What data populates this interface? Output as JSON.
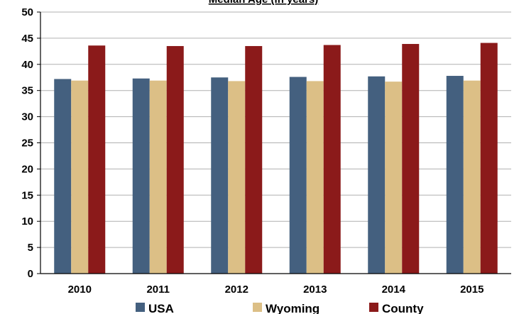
{
  "chart_data": {
    "type": "bar",
    "title": "Median Age (in years)",
    "categories": [
      "2010",
      "2011",
      "2012",
      "2013",
      "2014",
      "2015"
    ],
    "series": [
      {
        "name": "USA",
        "color": "#44607f",
        "values": [
          37.2,
          37.3,
          37.5,
          37.6,
          37.7,
          37.8
        ]
      },
      {
        "name": "Wyoming",
        "color": "#dcbf86",
        "values": [
          36.9,
          36.9,
          36.8,
          36.8,
          36.7,
          36.9
        ]
      },
      {
        "name": "County",
        "color": "#8b1a1a",
        "values": [
          43.6,
          43.5,
          43.5,
          43.7,
          43.9,
          44.1
        ]
      }
    ],
    "ylim": [
      0,
      50
    ],
    "yticks": [
      0,
      5,
      10,
      15,
      20,
      25,
      30,
      35,
      40,
      45,
      50
    ],
    "xlabel": "",
    "ylabel": "",
    "grid": true,
    "legend": "bottom"
  }
}
